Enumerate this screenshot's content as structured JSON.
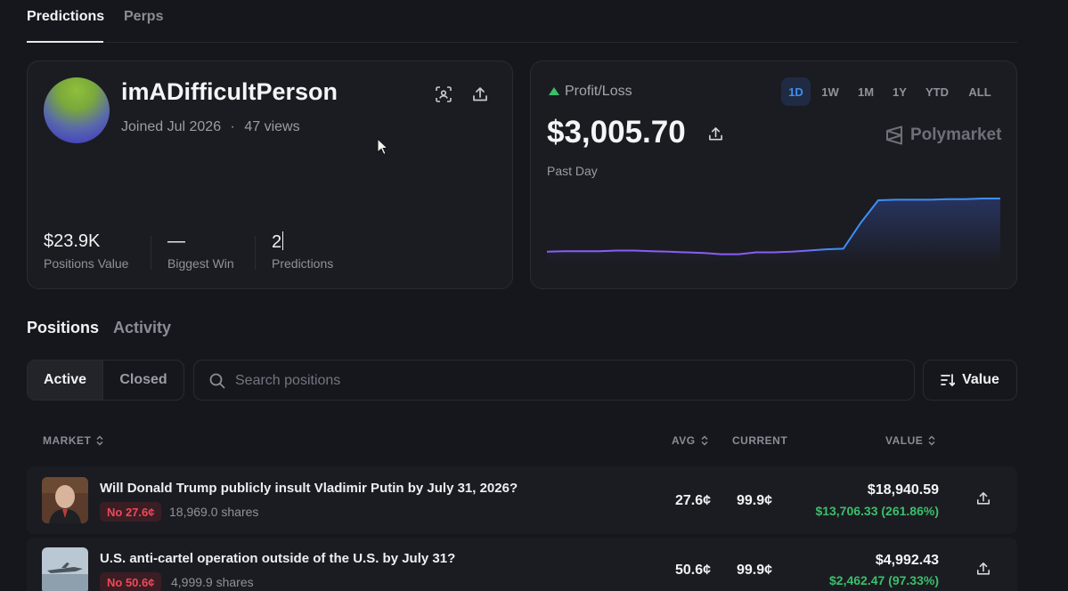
{
  "top_tabs": {
    "predictions": "Predictions",
    "perps": "Perps"
  },
  "profile": {
    "username": "imADifficultPerson",
    "joined": "Joined Jul 2026",
    "separator": "·",
    "views": "47 views",
    "stats": [
      {
        "value": "$23.9K",
        "label": "Positions Value"
      },
      {
        "value": "—",
        "label": "Biggest Win"
      },
      {
        "value": "2",
        "label": "Predictions"
      }
    ]
  },
  "pnl": {
    "title": "Profit/Loss",
    "amount": "$3,005.70",
    "period_label": "Past Day",
    "brand": "Polymarket",
    "ranges": [
      "1D",
      "1W",
      "1M",
      "1Y",
      "YTD",
      "ALL"
    ],
    "active_range": "1D",
    "colors": {
      "positive": "#3bbf6b",
      "line_start": "#8b5cf6",
      "line_end": "#3e8ef7"
    },
    "chart_series": [
      0.12,
      0.13,
      0.13,
      0.13,
      0.14,
      0.14,
      0.13,
      0.12,
      0.11,
      0.1,
      0.08,
      0.08,
      0.11,
      0.11,
      0.12,
      0.14,
      0.16,
      0.17,
      0.6,
      0.97,
      0.98,
      0.98,
      0.98,
      0.99,
      0.99,
      1.0,
      1.0
    ]
  },
  "section_tabs": {
    "positions": "Positions",
    "activity": "Activity"
  },
  "filters": {
    "active": "Active",
    "closed": "Closed",
    "search_placeholder": "Search positions",
    "sort_label": "Value"
  },
  "table": {
    "headers": {
      "market": "MARKET",
      "avg": "AVG",
      "current": "CURRENT",
      "value": "VALUE"
    },
    "rows": [
      {
        "question": "Will Donald Trump publicly insult Vladimir Putin by July 31, 2026?",
        "outcome": "No 27.6¢",
        "shares": "18,969.0 shares",
        "avg": "27.6¢",
        "current": "99.9¢",
        "value": "$18,940.59",
        "gain": "$13,706.33 (261.86%)"
      },
      {
        "question": "U.S. anti-cartel operation outside of the U.S. by July 31?",
        "outcome": "No 50.6¢",
        "shares": "4,999.9 shares",
        "avg": "50.6¢",
        "current": "99.9¢",
        "value": "$4,992.43",
        "gain": "$2,462.47 (97.33%)"
      }
    ]
  }
}
